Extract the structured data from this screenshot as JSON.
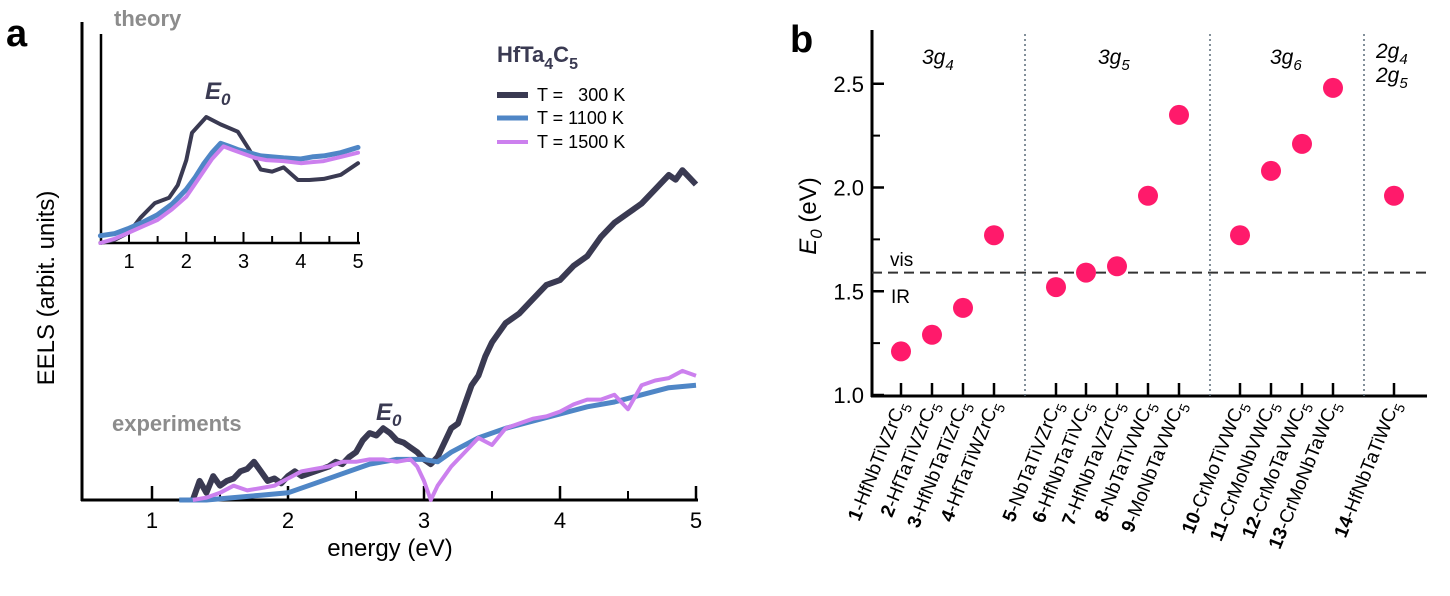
{
  "chart_data": [
    {
      "panel": "a",
      "type": "line",
      "title": "",
      "xlabel": "energy (eV)",
      "ylabel": "EELS (arbit. units)",
      "xlim": [
        0.5,
        5
      ],
      "ylim": [
        0,
        1
      ],
      "xticks": [
        1,
        2,
        3,
        4,
        5
      ],
      "xticks_minor": [
        1.5,
        2.5,
        3.5,
        4.5
      ],
      "grid": false,
      "legend": {
        "title": "HfTa",
        "title_sub1": "4",
        "title_mid": "C",
        "title_sub2": "5",
        "placement": "top-right",
        "entries": [
          "T =   300 K",
          "T = 1100 K",
          "T = 1500 K"
        ]
      },
      "annotations": {
        "experiments": "experiments",
        "theory": "theory",
        "e0_main": "E",
        "e0_sub": "0"
      },
      "series": [
        {
          "name": "T = 300 K",
          "color": "#3a3a52",
          "x": [
            1.3,
            1.35,
            1.4,
            1.45,
            1.5,
            1.55,
            1.6,
            1.65,
            1.7,
            1.75,
            1.8,
            1.85,
            1.9,
            1.95,
            2.0,
            2.05,
            2.1,
            2.15,
            2.2,
            2.25,
            2.3,
            2.35,
            2.4,
            2.45,
            2.5,
            2.55,
            2.6,
            2.65,
            2.7,
            2.75,
            2.8,
            2.85,
            2.9,
            2.95,
            3.0,
            3.05,
            3.1,
            3.15,
            3.2,
            3.25,
            3.3,
            3.35,
            3.4,
            3.45,
            3.5,
            3.6,
            3.7,
            3.8,
            3.9,
            4.0,
            4.1,
            4.2,
            4.3,
            4.4,
            4.5,
            4.6,
            4.7,
            4.8,
            4.85,
            4.9,
            4.95,
            5.0
          ],
          "y": [
            0.0,
            0.04,
            0.015,
            0.05,
            0.03,
            0.04,
            0.045,
            0.06,
            0.065,
            0.08,
            0.06,
            0.04,
            0.045,
            0.035,
            0.05,
            0.06,
            0.05,
            0.055,
            0.06,
            0.065,
            0.07,
            0.08,
            0.075,
            0.09,
            0.1,
            0.125,
            0.14,
            0.135,
            0.15,
            0.14,
            0.125,
            0.12,
            0.11,
            0.1,
            0.085,
            0.075,
            0.09,
            0.12,
            0.15,
            0.16,
            0.2,
            0.24,
            0.26,
            0.3,
            0.33,
            0.37,
            0.39,
            0.42,
            0.45,
            0.46,
            0.49,
            0.51,
            0.55,
            0.58,
            0.6,
            0.62,
            0.65,
            0.68,
            0.67,
            0.69,
            0.675,
            0.66
          ]
        },
        {
          "name": "T = 1100 K",
          "color": "#4f86c6",
          "x": [
            1.2,
            1.4,
            1.6,
            1.8,
            2.0,
            2.2,
            2.4,
            2.6,
            2.8,
            3.0,
            3.1,
            3.2,
            3.4,
            3.6,
            3.8,
            4.0,
            4.2,
            4.4,
            4.6,
            4.8,
            5.0
          ],
          "y": [
            0.0,
            0.0,
            0.005,
            0.01,
            0.015,
            0.035,
            0.055,
            0.075,
            0.085,
            0.085,
            0.08,
            0.1,
            0.13,
            0.15,
            0.165,
            0.18,
            0.195,
            0.205,
            0.22,
            0.235,
            0.24
          ]
        },
        {
          "name": "T = 1500 K",
          "color": "#cc80ee",
          "x": [
            1.3,
            1.4,
            1.5,
            1.6,
            1.7,
            1.8,
            1.9,
            2.0,
            2.1,
            2.2,
            2.3,
            2.4,
            2.5,
            2.6,
            2.7,
            2.8,
            2.9,
            2.95,
            3.0,
            3.05,
            3.1,
            3.2,
            3.3,
            3.4,
            3.5,
            3.6,
            3.7,
            3.8,
            3.9,
            4.0,
            4.1,
            4.2,
            4.3,
            4.4,
            4.5,
            4.6,
            4.7,
            4.8,
            4.9,
            5.0
          ],
          "y": [
            0.0,
            0.005,
            0.015,
            0.03,
            0.02,
            0.025,
            0.03,
            0.045,
            0.06,
            0.065,
            0.07,
            0.08,
            0.08,
            0.085,
            0.085,
            0.08,
            0.085,
            0.07,
            0.04,
            0.0,
            0.03,
            0.07,
            0.1,
            0.13,
            0.115,
            0.15,
            0.16,
            0.17,
            0.175,
            0.185,
            0.2,
            0.21,
            0.21,
            0.22,
            0.19,
            0.24,
            0.25,
            0.255,
            0.27,
            0.26
          ]
        }
      ],
      "inset": {
        "title": "theory",
        "xlim": [
          0.5,
          5
        ],
        "xticks": [
          1,
          2,
          3,
          4,
          5
        ],
        "xticks_minor": [
          1.5,
          2.5,
          3.5,
          4.5
        ],
        "ylim": [
          0,
          1
        ],
        "series": [
          {
            "name": "T = 300 K",
            "x": [
              0.5,
              0.75,
              1.0,
              1.2,
              1.45,
              1.7,
              1.85,
              2.0,
              2.1,
              2.35,
              2.6,
              2.9,
              3.1,
              3.3,
              3.5,
              3.7,
              3.95,
              4.15,
              4.4,
              4.7,
              5.0
            ],
            "y": [
              0.0,
              0.015,
              0.05,
              0.12,
              0.19,
              0.215,
              0.275,
              0.395,
              0.525,
              0.6,
              0.565,
              0.53,
              0.445,
              0.35,
              0.34,
              0.36,
              0.3,
              0.3,
              0.305,
              0.325,
              0.38
            ]
          },
          {
            "name": "T = 1100 K",
            "x": [
              0.5,
              0.75,
              1.0,
              1.25,
              1.5,
              1.75,
              2.0,
              2.15,
              2.3,
              2.45,
              2.6,
              2.75,
              2.9,
              3.1,
              3.3,
              3.5,
              3.7,
              4.0,
              4.2,
              4.4,
              4.7,
              5.0
            ],
            "y": [
              0.035,
              0.045,
              0.07,
              0.1,
              0.135,
              0.185,
              0.255,
              0.31,
              0.375,
              0.43,
              0.475,
              0.46,
              0.445,
              0.43,
              0.415,
              0.41,
              0.405,
              0.4,
              0.41,
              0.415,
              0.43,
              0.455
            ]
          },
          {
            "name": "T = 1500 K",
            "x": [
              0.5,
              0.75,
              1.0,
              1.25,
              1.5,
              1.75,
              2.0,
              2.15,
              2.3,
              2.45,
              2.65,
              2.8,
              3.0,
              3.2,
              3.4,
              3.7,
              4.0,
              4.2,
              4.4,
              4.7,
              5.0
            ],
            "y": [
              0.0,
              0.02,
              0.05,
              0.08,
              0.11,
              0.16,
              0.22,
              0.28,
              0.34,
              0.4,
              0.46,
              0.445,
              0.425,
              0.405,
              0.395,
              0.39,
              0.38,
              0.385,
              0.39,
              0.41,
              0.43
            ]
          }
        ]
      }
    },
    {
      "panel": "b",
      "type": "scatter",
      "title": "",
      "xlabel": "",
      "ylabel": "E",
      "ylabel_sub": "0",
      "ylabel_unit": " (eV)",
      "ylim": [
        1.0,
        2.75
      ],
      "yticks": [
        "1.0",
        "1.5",
        "2.0",
        "2.5"
      ],
      "yticks_values": [
        1.0,
        1.5,
        2.0,
        2.5
      ],
      "yticks_minor": [
        1.25,
        1.75,
        2.25
      ],
      "grid": false,
      "marker_color": "#ff1a6b",
      "threshold": {
        "value": 1.59,
        "label_above": "vis",
        "label_below": "IR"
      },
      "groups": [
        {
          "label": "3g",
          "sub": "4",
          "members": [
            1,
            2,
            3,
            4
          ]
        },
        {
          "label": "3g",
          "sub": "5",
          "members": [
            5,
            6,
            7,
            8,
            9
          ]
        },
        {
          "label": "3g",
          "sub": "6",
          "members": [
            10,
            11,
            12,
            13
          ]
        },
        {
          "label": "2g",
          "sub": "4",
          "label2": "2g",
          "sub2": "5",
          "members": [
            14
          ]
        }
      ],
      "points": [
        {
          "id": 1,
          "num": "1",
          "name": "-HfNbTiVZrC",
          "sub": "5",
          "value": 1.21
        },
        {
          "id": 2,
          "num": "2",
          "name": "-HfTaTiVZrC",
          "sub": "5",
          "value": 1.29
        },
        {
          "id": 3,
          "num": "3",
          "name": "-HfNbTaTiZrC",
          "sub": "5",
          "value": 1.42
        },
        {
          "id": 4,
          "num": "4",
          "name": "-HfTaTiWZrC",
          "sub": "5",
          "value": 1.77
        },
        {
          "id": 5,
          "num": "5",
          "name": "-NbTaTiVZrC",
          "sub": "5",
          "value": 1.52
        },
        {
          "id": 6,
          "num": "6",
          "name": "-HfNbTaTiVC",
          "sub": "5",
          "value": 1.59
        },
        {
          "id": 7,
          "num": "7",
          "name": "-HfNbTaVZrC",
          "sub": "5",
          "value": 1.62
        },
        {
          "id": 8,
          "num": "8",
          "name": "-NbTaTiVWC",
          "sub": "5",
          "value": 1.96
        },
        {
          "id": 9,
          "num": "9",
          "name": "-MoNbTaVWC",
          "sub": "5",
          "value": 2.35
        },
        {
          "id": 10,
          "num": "10",
          "name": "-CrMoTiVWC",
          "sub": "5",
          "value": 1.77
        },
        {
          "id": 11,
          "num": "11",
          "name": "-CrMoNbVWC",
          "sub": "5",
          "value": 2.08
        },
        {
          "id": 12,
          "num": "12",
          "name": "-CrMoTaVWC",
          "sub": "5",
          "value": 2.21
        },
        {
          "id": 13,
          "num": "13",
          "name": "-CrMoNbTaWC",
          "sub": "5",
          "value": 2.48
        },
        {
          "id": 14,
          "num": "14",
          "name": "-HfNbTaTiWC",
          "sub": "5",
          "value": 1.96
        }
      ]
    }
  ],
  "panels": {
    "a": "a",
    "b": "b"
  }
}
